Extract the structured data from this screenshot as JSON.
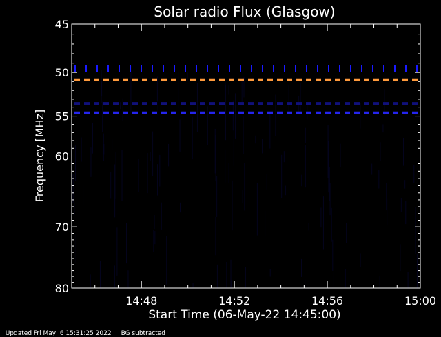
{
  "chart_data": {
    "type": "heatmap",
    "title": "Solar radio Flux (Glasgow)",
    "ylabel": "Frequency [MHz]",
    "xlabel": "Start Time (06-May-22 14:45:00)",
    "ylim": [
      80,
      45
    ],
    "xlim": [
      "14:45",
      "15:00"
    ],
    "y_tick_labels": [
      45,
      50,
      55,
      60,
      70,
      80
    ],
    "y_scale": "log",
    "x_tick_labels": [
      "14:48",
      "14:52",
      "14:56",
      "15:00"
    ],
    "x_tick_minutes": [
      3,
      7,
      11,
      15
    ],
    "background": "#000000",
    "bands": [
      {
        "freq": 49.6,
        "color": "#1a1aff",
        "style": "dashed-sparse"
      },
      {
        "freq": 50.8,
        "color": "#ff9a3c",
        "style": "dashed"
      },
      {
        "freq": 53.5,
        "color": "#10107a",
        "style": "dashed"
      },
      {
        "freq": 54.6,
        "color": "#2525ee",
        "style": "dashed"
      }
    ],
    "colors": {
      "noise": "#04041e",
      "axis": "#ffffff"
    }
  },
  "footer": {
    "updated": "Updated Fri May  6 15:31:25 2022",
    "note": "BG subtracted"
  }
}
